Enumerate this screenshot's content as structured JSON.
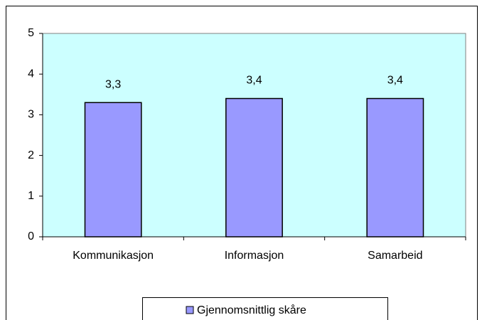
{
  "chart_data": {
    "type": "bar",
    "categories": [
      "Kommunikasjon",
      "Informasjon",
      "Samarbeid"
    ],
    "series": [
      {
        "name": "Gjennomsnittlig skåre",
        "color": "#9999ff",
        "values": [
          3.3,
          3.4,
          3.4
        ],
        "value_labels": [
          "3,3",
          "3,4",
          "3,4"
        ]
      }
    ],
    "ylim": [
      0,
      5
    ],
    "yticks": [
      0,
      1,
      2,
      3,
      4,
      5
    ],
    "plot_background": "#ccffff",
    "legend": "bottom"
  }
}
